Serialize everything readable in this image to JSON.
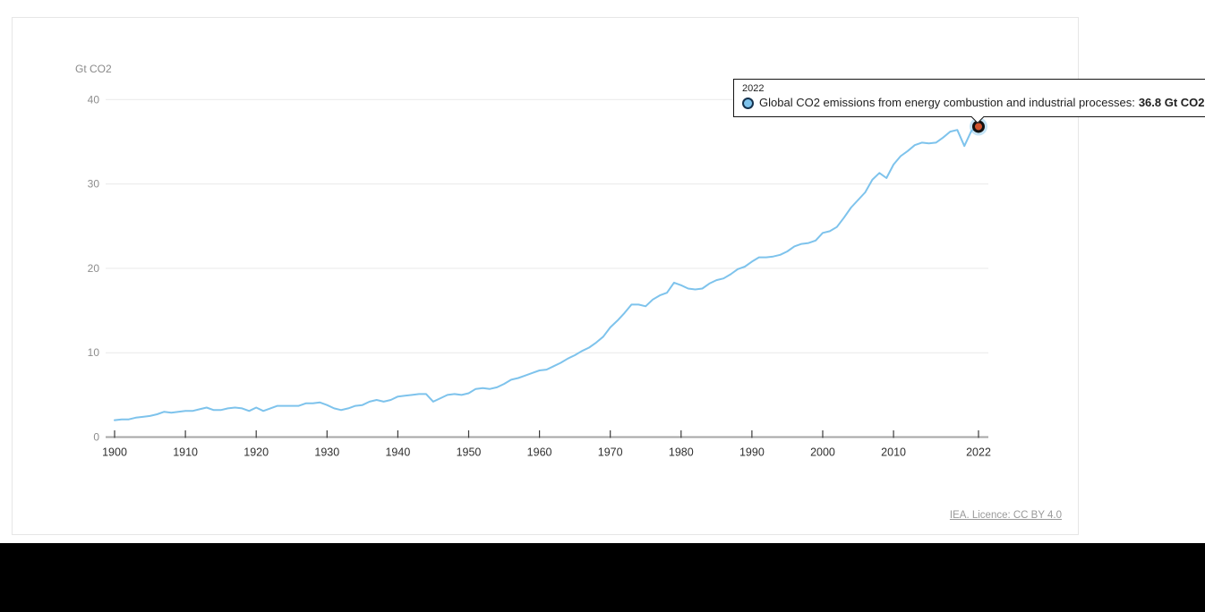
{
  "unit_label": "Gt CO2",
  "tooltip": {
    "year_label": "2022",
    "series_label": "Global CO2 emissions from energy combustion and industrial processes:",
    "value_label": "36.8 Gt CO2"
  },
  "footer": {
    "licence_text": "IEA. Licence: CC BY 4.0"
  },
  "chart_data": {
    "type": "line",
    "title": "",
    "xlabel": "",
    "ylabel": "Gt CO2",
    "xlim": [
      1900,
      2022
    ],
    "ylim": [
      0,
      40
    ],
    "xticks": [
      1900,
      1910,
      1920,
      1930,
      1940,
      1950,
      1960,
      1970,
      1980,
      1990,
      2000,
      2010,
      2022
    ],
    "yticks": [
      0,
      10,
      20,
      30,
      40
    ],
    "grid": "horizontal",
    "legend_position": "none",
    "x": [
      1900,
      1901,
      1902,
      1903,
      1904,
      1905,
      1906,
      1907,
      1908,
      1909,
      1910,
      1911,
      1912,
      1913,
      1914,
      1915,
      1916,
      1917,
      1918,
      1919,
      1920,
      1921,
      1922,
      1923,
      1924,
      1925,
      1926,
      1927,
      1928,
      1929,
      1930,
      1931,
      1932,
      1933,
      1934,
      1935,
      1936,
      1937,
      1938,
      1939,
      1940,
      1941,
      1942,
      1943,
      1944,
      1945,
      1946,
      1947,
      1948,
      1949,
      1950,
      1951,
      1952,
      1953,
      1954,
      1955,
      1956,
      1957,
      1958,
      1959,
      1960,
      1961,
      1962,
      1963,
      1964,
      1965,
      1966,
      1967,
      1968,
      1969,
      1970,
      1971,
      1972,
      1973,
      1974,
      1975,
      1976,
      1977,
      1978,
      1979,
      1980,
      1981,
      1982,
      1983,
      1984,
      1985,
      1986,
      1987,
      1988,
      1989,
      1990,
      1991,
      1992,
      1993,
      1994,
      1995,
      1996,
      1997,
      1998,
      1999,
      2000,
      2001,
      2002,
      2003,
      2004,
      2005,
      2006,
      2007,
      2008,
      2009,
      2010,
      2011,
      2012,
      2013,
      2014,
      2015,
      2016,
      2017,
      2018,
      2019,
      2020,
      2021,
      2022
    ],
    "series": [
      {
        "name": "Global CO2 emissions from energy combustion and industrial processes",
        "color": "#7ec3ec",
        "values": [
          2.0,
          2.1,
          2.1,
          2.3,
          2.4,
          2.5,
          2.7,
          3.0,
          2.9,
          3.0,
          3.1,
          3.1,
          3.3,
          3.5,
          3.2,
          3.2,
          3.4,
          3.5,
          3.4,
          3.1,
          3.5,
          3.1,
          3.4,
          3.7,
          3.7,
          3.7,
          3.7,
          4.0,
          4.0,
          4.1,
          3.8,
          3.4,
          3.2,
          3.4,
          3.7,
          3.8,
          4.2,
          4.4,
          4.2,
          4.4,
          4.8,
          4.9,
          5.0,
          5.1,
          5.1,
          4.2,
          4.6,
          5.0,
          5.1,
          5.0,
          5.2,
          5.7,
          5.8,
          5.7,
          5.9,
          6.3,
          6.8,
          7.0,
          7.3,
          7.6,
          7.9,
          8.0,
          8.4,
          8.8,
          9.3,
          9.7,
          10.2,
          10.6,
          11.2,
          11.9,
          13.0,
          13.8,
          14.7,
          15.7,
          15.7,
          15.5,
          16.3,
          16.8,
          17.1,
          18.3,
          18.0,
          17.6,
          17.5,
          17.6,
          18.2,
          18.6,
          18.8,
          19.3,
          19.9,
          20.2,
          20.8,
          21.3,
          21.3,
          21.4,
          21.6,
          22.0,
          22.6,
          22.9,
          23.0,
          23.3,
          24.2,
          24.4,
          24.9,
          26.0,
          27.2,
          28.1,
          29.0,
          30.5,
          31.3,
          30.7,
          32.3,
          33.3,
          33.9,
          34.6,
          34.9,
          34.8,
          34.9,
          35.5,
          36.2,
          36.4,
          34.5,
          36.3,
          36.8
        ]
      }
    ],
    "highlight_point": {
      "year": 2022,
      "value": 36.8
    },
    "colors": {
      "line": "#7ec3ec",
      "marker_fill": "#d0532e",
      "marker_ring": "#121212",
      "marker_halo": "rgba(126,195,236,0.45)",
      "gridline": "#e9e9e9",
      "axis_line": "#a6a6a6",
      "tick_mark": "#3c3c3c",
      "y_label": "#8d8d8d",
      "x_label": "#2f2f2f"
    }
  }
}
